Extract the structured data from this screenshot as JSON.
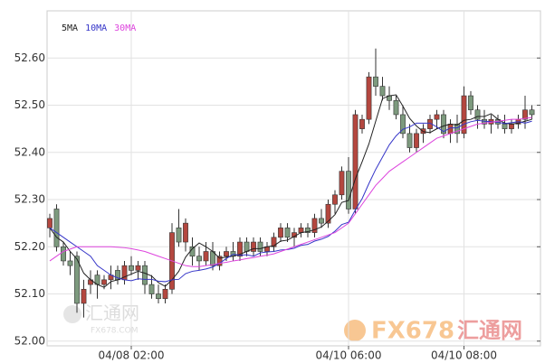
{
  "chart_data": {
    "type": "candlestick",
    "up_color": "#b4473f",
    "down_color": "#7d9a7e",
    "grid": true,
    "ylim": [
      51.99,
      52.7
    ],
    "yticks": [
      {
        "value": 52.0,
        "label": "52.00"
      },
      {
        "value": 52.1,
        "label": "52.10"
      },
      {
        "value": 52.2,
        "label": "52.20"
      },
      {
        "value": 52.3,
        "label": "52.30"
      },
      {
        "value": 52.4,
        "label": "52.40"
      },
      {
        "value": 52.5,
        "label": "52.50"
      },
      {
        "value": 52.6,
        "label": "52.60"
      }
    ],
    "categories": [
      null,
      null,
      null,
      null,
      null,
      null,
      null,
      null,
      null,
      null,
      null,
      null,
      "04/08 02:00",
      null,
      null,
      null,
      null,
      null,
      null,
      null,
      null,
      null,
      null,
      null,
      null,
      null,
      null,
      null,
      null,
      null,
      null,
      null,
      null,
      null,
      null,
      null,
      null,
      null,
      null,
      null,
      null,
      null,
      null,
      null,
      "04/10 06:00",
      null,
      null,
      null,
      null,
      null,
      null,
      null,
      null,
      null,
      null,
      null,
      null,
      null,
      null,
      null,
      null,
      "04/10 08:00",
      null,
      null,
      null,
      null,
      null,
      null,
      null,
      null,
      null,
      null
    ],
    "ohlc": [
      [
        52.24,
        52.27,
        52.22,
        52.26
      ],
      [
        52.28,
        52.29,
        52.19,
        52.2
      ],
      [
        52.2,
        52.21,
        52.16,
        52.17
      ],
      [
        52.17,
        52.19,
        52.14,
        52.16
      ],
      [
        52.18,
        52.19,
        52.06,
        52.08
      ],
      [
        52.08,
        52.13,
        52.05,
        52.11
      ],
      [
        52.12,
        52.15,
        52.1,
        52.13
      ],
      [
        52.14,
        52.15,
        52.09,
        52.12
      ],
      [
        52.12,
        52.14,
        52.11,
        52.13
      ],
      [
        52.13,
        52.16,
        52.11,
        52.14
      ],
      [
        52.15,
        52.16,
        52.12,
        52.13
      ],
      [
        52.13,
        52.17,
        52.12,
        52.16
      ],
      [
        52.16,
        52.18,
        52.14,
        52.15
      ],
      [
        52.15,
        52.17,
        52.13,
        52.16
      ],
      [
        52.16,
        52.17,
        52.1,
        52.12
      ],
      [
        52.12,
        52.14,
        52.09,
        52.1
      ],
      [
        52.1,
        52.12,
        52.08,
        52.09
      ],
      [
        52.09,
        52.12,
        52.08,
        52.11
      ],
      [
        52.11,
        52.25,
        52.1,
        52.23
      ],
      [
        52.24,
        52.28,
        52.2,
        52.21
      ],
      [
        52.21,
        52.26,
        52.19,
        52.25
      ],
      [
        52.2,
        52.22,
        52.16,
        52.18
      ],
      [
        52.18,
        52.2,
        52.15,
        52.17
      ],
      [
        52.17,
        52.21,
        52.16,
        52.19
      ],
      [
        52.19,
        52.21,
        52.15,
        52.16
      ],
      [
        52.16,
        52.19,
        52.15,
        52.18
      ],
      [
        52.18,
        52.2,
        52.17,
        52.19
      ],
      [
        52.19,
        52.21,
        52.17,
        52.18
      ],
      [
        52.18,
        52.22,
        52.17,
        52.21
      ],
      [
        52.21,
        52.22,
        52.18,
        52.19
      ],
      [
        52.19,
        52.22,
        52.18,
        52.21
      ],
      [
        52.21,
        52.22,
        52.18,
        52.19
      ],
      [
        52.19,
        52.21,
        52.18,
        52.2
      ],
      [
        52.2,
        52.23,
        52.19,
        52.22
      ],
      [
        52.22,
        52.25,
        52.21,
        52.24
      ],
      [
        52.24,
        52.25,
        52.21,
        52.22
      ],
      [
        52.22,
        52.24,
        52.2,
        52.23
      ],
      [
        52.23,
        52.25,
        52.22,
        52.24
      ],
      [
        52.24,
        52.25,
        52.22,
        52.23
      ],
      [
        52.23,
        52.27,
        52.22,
        52.26
      ],
      [
        52.26,
        52.28,
        52.24,
        52.25
      ],
      [
        52.25,
        52.3,
        52.24,
        52.29
      ],
      [
        52.29,
        52.32,
        52.27,
        52.31
      ],
      [
        52.31,
        52.37,
        52.3,
        52.36
      ],
      [
        52.36,
        52.39,
        52.27,
        52.28
      ],
      [
        52.28,
        52.49,
        52.27,
        52.48
      ],
      [
        52.45,
        52.48,
        52.44,
        52.47
      ],
      [
        52.47,
        52.57,
        52.46,
        52.56
      ],
      [
        52.56,
        52.62,
        52.52,
        52.54
      ],
      [
        52.54,
        52.56,
        52.51,
        52.52
      ],
      [
        52.52,
        52.54,
        52.49,
        52.51
      ],
      [
        52.51,
        52.52,
        52.47,
        52.48
      ],
      [
        52.48,
        52.5,
        52.43,
        52.44
      ],
      [
        52.44,
        52.46,
        52.4,
        52.41
      ],
      [
        52.41,
        52.45,
        52.4,
        52.44
      ],
      [
        52.44,
        52.46,
        52.42,
        52.45
      ],
      [
        52.45,
        52.48,
        52.44,
        52.47
      ],
      [
        52.47,
        52.49,
        52.45,
        52.48
      ],
      [
        52.48,
        52.49,
        52.43,
        52.44
      ],
      [
        52.44,
        52.47,
        52.42,
        52.46
      ],
      [
        52.46,
        52.48,
        52.42,
        52.44
      ],
      [
        52.44,
        52.54,
        52.43,
        52.52
      ],
      [
        52.52,
        52.53,
        52.48,
        52.49
      ],
      [
        52.49,
        52.5,
        52.45,
        52.47
      ],
      [
        52.47,
        52.49,
        52.45,
        52.46
      ],
      [
        52.46,
        52.48,
        52.44,
        52.47
      ],
      [
        52.47,
        52.48,
        52.45,
        52.46
      ],
      [
        52.46,
        52.48,
        52.44,
        52.45
      ],
      [
        52.45,
        52.47,
        52.44,
        52.46
      ],
      [
        52.46,
        52.48,
        52.45,
        52.47
      ],
      [
        52.47,
        52.52,
        52.45,
        52.49
      ],
      [
        52.49,
        52.5,
        52.47,
        52.48
      ]
    ],
    "series": [
      {
        "name": "5MA",
        "color": "#222222",
        "values": [
          52.24,
          52.22,
          52.21,
          52.19,
          52.174,
          52.144,
          52.13,
          52.12,
          52.114,
          52.126,
          52.13,
          52.136,
          52.142,
          52.148,
          52.144,
          52.138,
          52.124,
          52.116,
          52.13,
          52.148,
          52.178,
          52.196,
          52.208,
          52.2,
          52.19,
          52.176,
          52.178,
          52.18,
          52.184,
          52.19,
          52.196,
          52.196,
          52.2,
          52.202,
          52.212,
          52.214,
          52.222,
          52.23,
          52.232,
          52.236,
          52.242,
          52.254,
          52.268,
          52.294,
          52.298,
          52.344,
          52.38,
          52.418,
          52.466,
          52.514,
          52.52,
          52.522,
          52.498,
          52.472,
          52.456,
          52.444,
          52.442,
          52.45,
          52.456,
          52.46,
          52.458,
          52.468,
          52.47,
          52.476,
          52.476,
          52.482,
          52.47,
          52.462,
          52.46,
          52.462,
          52.466,
          52.47
        ]
      },
      {
        "name": "10MA",
        "color": "#3535c8",
        "values": [
          52.24,
          52.23,
          52.22,
          52.21,
          52.2,
          52.19,
          52.18,
          52.16,
          52.15,
          52.14,
          52.134,
          52.13,
          52.128,
          52.132,
          52.131,
          52.131,
          52.127,
          52.126,
          52.13,
          52.131,
          52.143,
          52.148,
          52.15,
          52.153,
          52.157,
          52.165,
          52.175,
          52.184,
          52.182,
          52.183,
          52.18,
          52.187,
          52.189,
          52.19,
          52.193,
          52.194,
          52.197,
          52.203,
          52.205,
          52.212,
          52.216,
          52.222,
          52.233,
          52.247,
          52.252,
          52.278,
          52.302,
          52.334,
          52.364,
          52.39,
          52.416,
          52.435,
          52.449,
          52.454,
          52.462,
          52.462,
          52.462,
          52.454,
          52.444,
          52.452,
          52.452,
          52.46,
          52.465,
          52.468,
          52.466,
          52.465,
          52.464,
          52.461,
          52.463,
          52.465,
          52.462,
          52.466
        ]
      },
      {
        "name": "30MA",
        "color": "#dd44dd",
        "values": [
          52.17,
          52.18,
          52.19,
          52.195,
          52.2,
          52.2,
          52.2,
          52.2,
          52.2,
          52.2,
          52.199,
          52.198,
          52.196,
          52.193,
          52.19,
          52.185,
          52.18,
          52.175,
          52.17,
          52.165,
          52.16,
          52.158,
          52.158,
          52.16,
          52.162,
          52.165,
          52.167,
          52.17,
          52.172,
          52.175,
          52.177,
          52.18,
          52.182,
          52.185,
          52.19,
          52.195,
          52.2,
          52.205,
          52.21,
          52.215,
          52.22,
          52.225,
          52.23,
          52.24,
          52.25,
          52.27,
          52.29,
          52.31,
          52.33,
          52.345,
          52.36,
          52.37,
          52.38,
          52.39,
          52.4,
          52.41,
          52.42,
          52.43,
          52.435,
          52.44,
          52.445,
          52.45,
          52.455,
          52.46,
          52.462,
          52.464,
          52.466,
          52.468,
          52.47,
          52.47,
          52.472,
          52.474
        ]
      }
    ],
    "watermark": {
      "left_name": "汇通网",
      "left_site": "FX678.COM",
      "right_brand": "FX678",
      "right_name": "汇通网"
    }
  }
}
